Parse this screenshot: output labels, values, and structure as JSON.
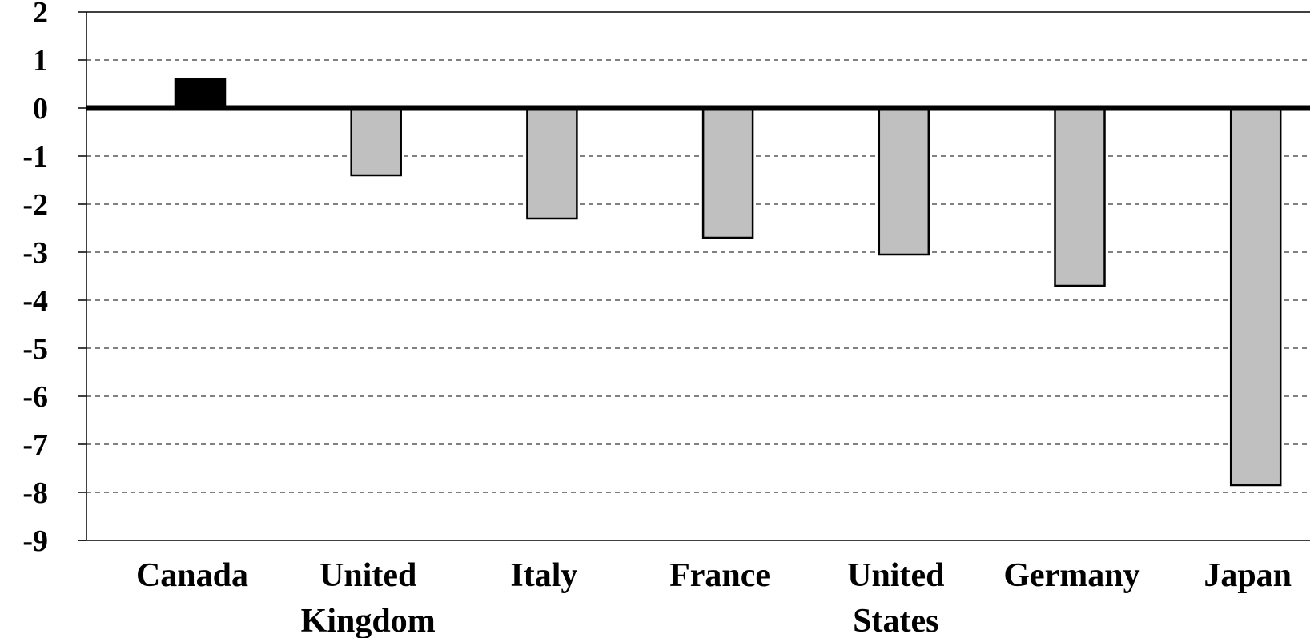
{
  "chart_data": {
    "type": "bar",
    "title": "",
    "xlabel": "",
    "ylabel": "",
    "categories": [
      "Canada",
      "United Kingdom",
      "Italy",
      "France",
      "United States",
      "Germany",
      "Japan"
    ],
    "category_lines": [
      [
        "Canada"
      ],
      [
        "United",
        "Kingdom"
      ],
      [
        "Italy"
      ],
      [
        "France"
      ],
      [
        "United",
        "States"
      ],
      [
        "Germany"
      ],
      [
        "Japan"
      ]
    ],
    "values": [
      0.6,
      -1.4,
      -2.3,
      -2.7,
      -3.05,
      -3.7,
      -7.85
    ],
    "ylim": [
      -9,
      2
    ],
    "yticks": [
      2,
      1,
      0,
      -1,
      -2,
      -3,
      -4,
      -5,
      -6,
      -7,
      -8,
      -9
    ],
    "grid": "horizontal-dashed",
    "colors": {
      "positive": "#000000",
      "negative": "#c0c0c0",
      "baseline": "#000000"
    }
  }
}
